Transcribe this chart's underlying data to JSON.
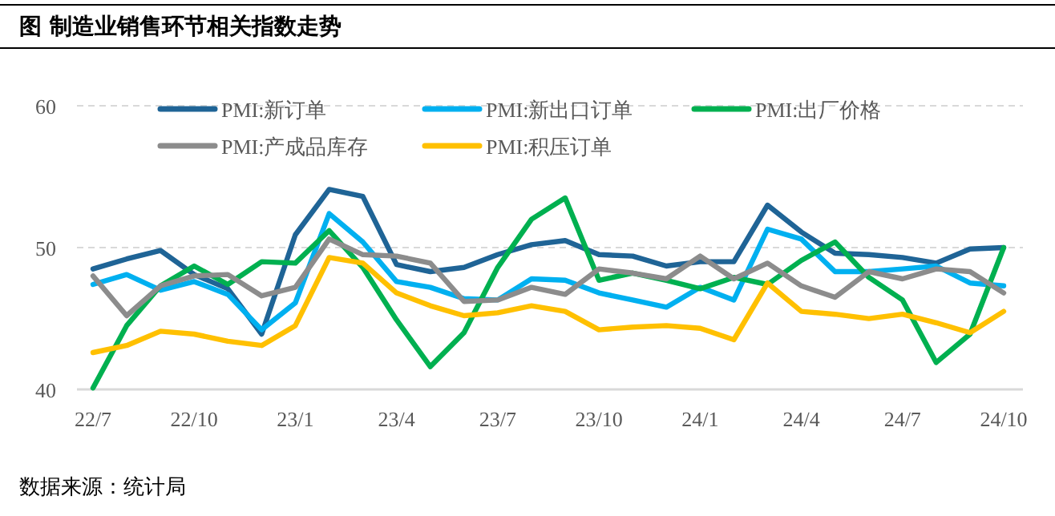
{
  "chart_data": {
    "type": "line",
    "title": "图  制造业销售环节相关指数走势",
    "categories": [
      "22/7",
      null,
      null,
      "22/10",
      null,
      null,
      "23/1",
      null,
      null,
      "23/4",
      null,
      null,
      "23/7",
      null,
      null,
      "23/10",
      null,
      null,
      "24/1",
      null,
      null,
      "24/4",
      null,
      null,
      "24/7",
      null,
      null,
      "24/10"
    ],
    "series": [
      {
        "name": "PMI:新订单",
        "color": "#1f6496",
        "values": [
          48.5,
          49.2,
          49.8,
          48.1,
          47.1,
          43.9,
          50.9,
          54.1,
          53.6,
          48.8,
          48.3,
          48.6,
          49.5,
          50.2,
          50.5,
          49.5,
          49.4,
          48.7,
          49.0,
          49.0,
          53.0,
          51.1,
          49.6,
          49.5,
          49.3,
          48.9,
          49.9,
          50.0
        ]
      },
      {
        "name": "PMI:新出口订单",
        "color": "#00b0f0",
        "values": [
          47.4,
          48.1,
          47.0,
          47.6,
          46.7,
          44.2,
          46.1,
          52.4,
          50.4,
          47.6,
          47.2,
          46.4,
          46.3,
          47.8,
          47.7,
          46.8,
          46.3,
          45.8,
          47.2,
          46.3,
          51.3,
          50.6,
          48.3,
          48.3,
          48.5,
          48.7,
          47.5,
          47.3
        ]
      },
      {
        "name": "PMI:出厂价格",
        "color": "#00b050",
        "values": [
          40.1,
          44.5,
          47.3,
          48.7,
          47.4,
          49.0,
          48.9,
          51.2,
          48.6,
          44.9,
          41.6,
          44.0,
          48.6,
          52.0,
          53.5,
          47.7,
          48.2,
          47.7,
          47.1,
          47.9,
          47.4,
          49.1,
          50.4,
          47.9,
          46.3,
          41.9,
          43.9,
          50.0
        ]
      },
      {
        "name": "PMI:产成品库存",
        "color": "#8c8c8c",
        "values": [
          48.0,
          45.2,
          47.3,
          48.0,
          48.1,
          46.6,
          47.2,
          50.6,
          49.5,
          49.4,
          48.9,
          46.2,
          46.3,
          47.2,
          46.7,
          48.5,
          48.2,
          47.8,
          49.4,
          47.8,
          48.9,
          47.3,
          46.5,
          48.3,
          47.8,
          48.5,
          48.3,
          46.8
        ]
      },
      {
        "name": "PMI:积压订单",
        "color": "#ffc000",
        "values": [
          42.6,
          43.1,
          44.1,
          43.9,
          43.4,
          43.1,
          44.5,
          49.3,
          48.9,
          46.8,
          45.9,
          45.2,
          45.4,
          45.9,
          45.5,
          44.2,
          44.4,
          44.5,
          44.3,
          43.5,
          47.5,
          45.5,
          45.3,
          45.0,
          45.3,
          44.7,
          44.0,
          45.5
        ]
      }
    ],
    "ylim": [
      40,
      60
    ],
    "yticks": [
      40,
      50,
      60
    ],
    "grid": "y",
    "legend": "top",
    "line_style": "solid",
    "marker": "none",
    "annotations": [
      "数据来源：统计局"
    ]
  }
}
